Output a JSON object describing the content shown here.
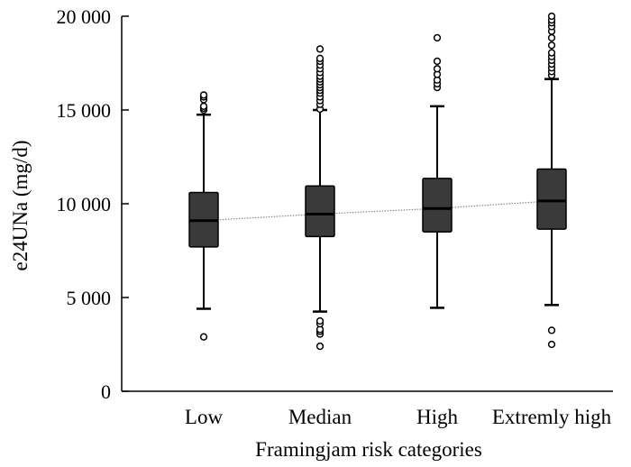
{
  "chart_data": {
    "type": "box",
    "title": "",
    "xlabel": "Framingjam risk categories",
    "ylabel": "e24UNa (mg/d)",
    "ylim": [
      0,
      20000
    ],
    "yticks": [
      0,
      5000,
      10000,
      15000,
      20000
    ],
    "ytick_labels": [
      "0",
      "5 000",
      "10 000",
      "15 000",
      "20 000"
    ],
    "grid": false,
    "legend": "none",
    "box_fill": "#3a3a3a",
    "trend_color": "#888888",
    "median_trend_line": true,
    "categories": [
      "Low",
      "Median",
      "High",
      "Extremly high"
    ],
    "boxes": [
      {
        "category": "Low",
        "whisker_low": 4400,
        "q1": 7700,
        "median": 9100,
        "q3": 10600,
        "whisker_high": 14750,
        "outliers": [
          2900,
          15000,
          15100,
          15200,
          15550,
          15700,
          15800
        ]
      },
      {
        "category": "Median",
        "whisker_low": 4250,
        "q1": 8250,
        "median": 9450,
        "q3": 10950,
        "whisker_high": 15000,
        "outliers": [
          2400,
          3050,
          3200,
          3300,
          3600,
          3750,
          15050,
          15300,
          15500,
          15700,
          15900,
          16050,
          16200,
          16350,
          16500,
          16650,
          16800,
          17000,
          17200,
          17400,
          17600,
          17750,
          18250
        ]
      },
      {
        "category": "High",
        "whisker_low": 4450,
        "q1": 8500,
        "median": 9750,
        "q3": 11350,
        "whisker_high": 15200,
        "outliers": [
          16200,
          16400,
          16600,
          16900,
          17200,
          17600,
          18850
        ]
      },
      {
        "category": "Extremly high",
        "whisker_low": 4600,
        "q1": 8650,
        "median": 10150,
        "q3": 11850,
        "whisker_high": 16650,
        "outliers": [
          2500,
          3250,
          16850,
          17050,
          17250,
          17450,
          17650,
          17850,
          18050,
          18450,
          18850,
          19200,
          19450,
          19650,
          19800,
          20000
        ]
      }
    ]
  }
}
